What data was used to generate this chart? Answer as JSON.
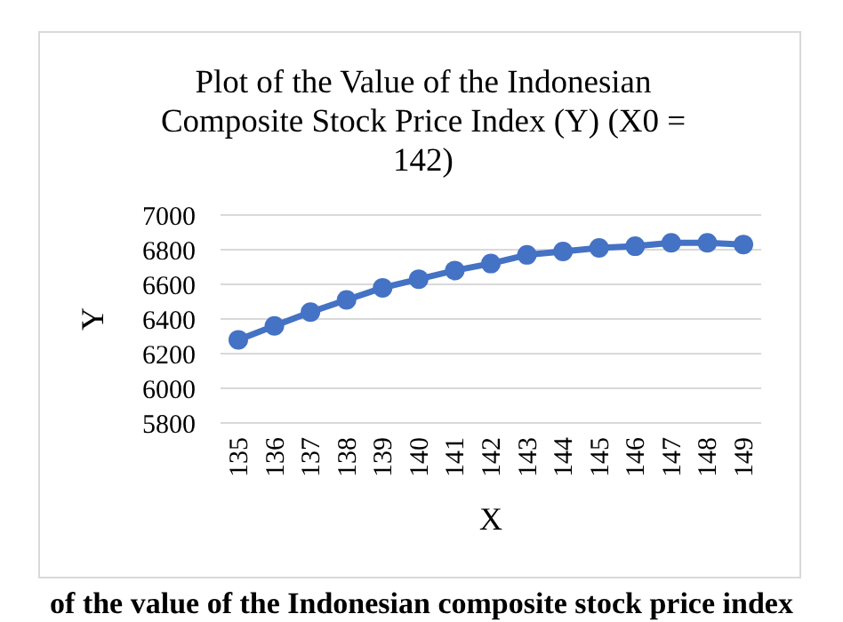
{
  "chart_data": {
    "type": "line",
    "title": "Plot of the Value of the Indonesian Composite Stock Price Index (Y) (X0 = 142)",
    "xlabel": "X",
    "ylabel": "Y",
    "categories": [
      "135",
      "136",
      "137",
      "138",
      "139",
      "140",
      "141",
      "142",
      "143",
      "144",
      "145",
      "146",
      "147",
      "148",
      "149"
    ],
    "series": [
      {
        "color": "#4472c4",
        "values": [
          6280,
          6360,
          6440,
          6510,
          6580,
          6630,
          6680,
          6720,
          6770,
          6790,
          6810,
          6820,
          6840,
          6840,
          6830
        ]
      }
    ],
    "ylim": [
      5800,
      7000
    ],
    "yticks": [
      5800,
      6000,
      6200,
      6400,
      6600,
      6800,
      7000
    ],
    "grid": "y",
    "marker": "circle",
    "annotations": [
      "of the value of the Indonesian composite stock price index"
    ]
  }
}
